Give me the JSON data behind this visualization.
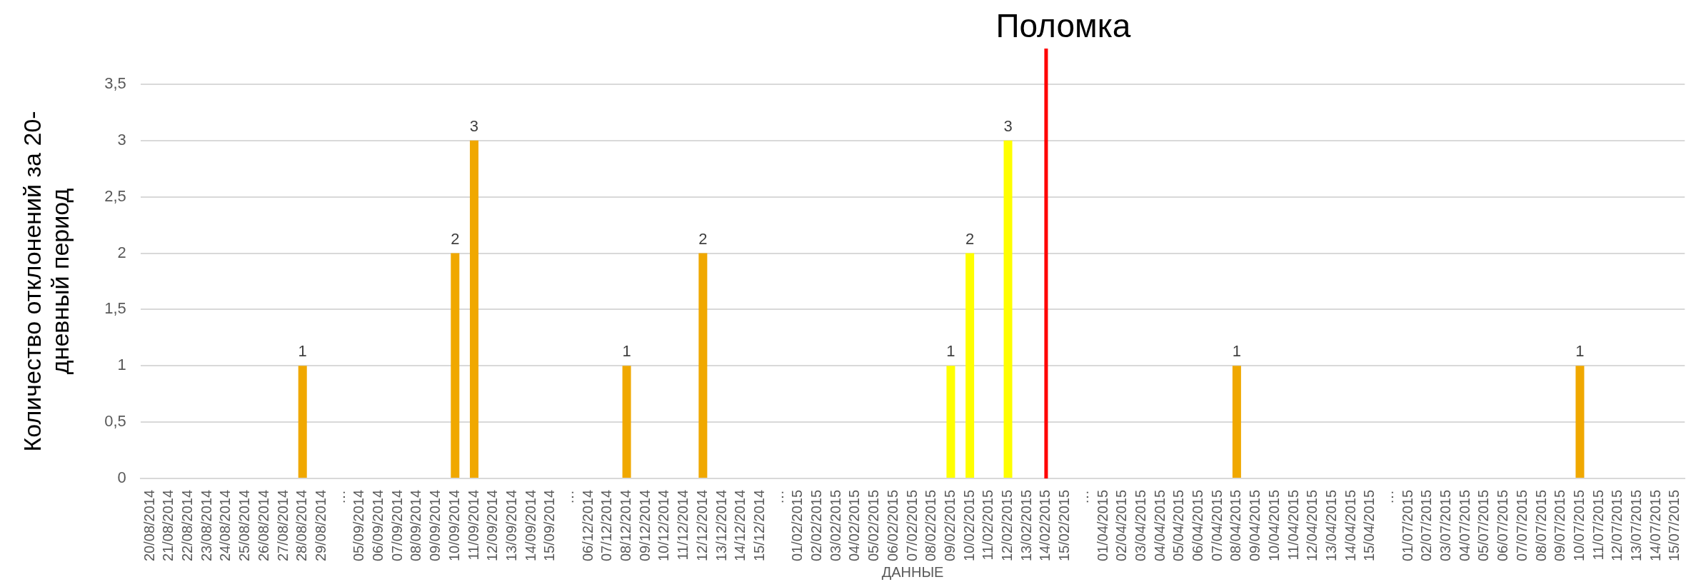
{
  "chart_data": {
    "type": "bar",
    "xlabel": "ДАННЫЕ",
    "ylabel": "Количество отклонений за 20-дневный период",
    "categories": [
      "20/08/2014",
      "21/08/2014",
      "22/08/2014",
      "23/08/2014",
      "24/08/2014",
      "25/08/2014",
      "26/08/2014",
      "27/08/2014",
      "28/08/2014",
      "29/08/2014",
      "…",
      "05/09/2014",
      "06/09/2014",
      "07/09/2014",
      "08/09/2014",
      "09/09/2014",
      "10/09/2014",
      "11/09/2014",
      "12/09/2014",
      "13/09/2014",
      "14/09/2014",
      "15/09/2014",
      "…",
      "06/12/2014",
      "07/12/2014",
      "08/12/2014",
      "09/12/2014",
      "10/12/2014",
      "11/12/2014",
      "12/12/2014",
      "13/12/2014",
      "14/12/2014",
      "15/12/2014",
      "…",
      "01/02/2015",
      "02/02/2015",
      "03/02/2015",
      "04/02/2015",
      "05/02/2015",
      "06/02/2015",
      "07/02/2015",
      "08/02/2015",
      "09/02/2015",
      "10/02/2015",
      "11/02/2015",
      "12/02/2015",
      "13/02/2015",
      "14/02/2015",
      "15/02/2015",
      "…",
      "01/04/2015",
      "02/04/2015",
      "03/04/2015",
      "04/04/2015",
      "05/04/2015",
      "06/04/2015",
      "07/04/2015",
      "08/04/2015",
      "09/04/2015",
      "10/04/2015",
      "11/04/2015",
      "12/04/2015",
      "13/04/2015",
      "14/04/2015",
      "15/04/2015",
      "…",
      "01/07/2015",
      "02/07/2015",
      "03/07/2015",
      "04/07/2015",
      "05/07/2015",
      "06/07/2015",
      "07/07/2015",
      "08/07/2015",
      "09/07/2015",
      "10/07/2015",
      "11/07/2015",
      "12/07/2015",
      "13/07/2015",
      "14/07/2015",
      "15/07/2015"
    ],
    "values": [
      0,
      0,
      0,
      0,
      0,
      0,
      0,
      0,
      1,
      0,
      0,
      0,
      0,
      0,
      0,
      0,
      2,
      3,
      0,
      0,
      0,
      0,
      0,
      0,
      0,
      1,
      0,
      0,
      0,
      2,
      0,
      0,
      0,
      0,
      0,
      0,
      0,
      0,
      0,
      0,
      0,
      0,
      1,
      2,
      0,
      3,
      0,
      0,
      0,
      0,
      0,
      0,
      0,
      0,
      0,
      0,
      0,
      1,
      0,
      0,
      0,
      0,
      0,
      0,
      0,
      0,
      0,
      0,
      0,
      0,
      0,
      0,
      0,
      0,
      0,
      1,
      0,
      0,
      0,
      0,
      0
    ],
    "value_labels": [
      null,
      null,
      null,
      null,
      null,
      null,
      null,
      null,
      "1",
      null,
      null,
      null,
      null,
      null,
      null,
      null,
      "2",
      "3",
      null,
      null,
      null,
      null,
      null,
      null,
      null,
      "1",
      null,
      null,
      null,
      "2",
      null,
      null,
      null,
      null,
      null,
      null,
      null,
      null,
      null,
      null,
      null,
      null,
      "1",
      "2",
      null,
      "3",
      null,
      null,
      null,
      null,
      null,
      null,
      null,
      null,
      null,
      null,
      null,
      "1",
      null,
      null,
      null,
      null,
      null,
      null,
      null,
      null,
      null,
      null,
      null,
      null,
      null,
      null,
      null,
      null,
      null,
      "1",
      null,
      null,
      null,
      null,
      null
    ],
    "colors": [
      "#f0a800",
      "#f0a800",
      "#f0a800",
      "#f0a800",
      "#f0a800",
      "#f0a800",
      "#f0a800",
      "#f0a800",
      "#f0a800",
      "#f0a800",
      "#f0a800",
      "#f0a800",
      "#f0a800",
      "#f0a800",
      "#f0a800",
      "#f0a800",
      "#f0a800",
      "#f0a800",
      "#f0a800",
      "#f0a800",
      "#f0a800",
      "#f0a800",
      "#f0a800",
      "#f0a800",
      "#f0a800",
      "#f0a800",
      "#f0a800",
      "#f0a800",
      "#f0a800",
      "#f0a800",
      "#f0a800",
      "#f0a800",
      "#f0a800",
      "#f0a800",
      "#f0a800",
      "#f0a800",
      "#f0a800",
      "#f0a800",
      "#f0a800",
      "#f0a800",
      "#f0a800",
      "#f0a800",
      "#ffff00",
      "#ffff00",
      "#ffff00",
      "#ffff00",
      "#f0a800",
      "#f0a800",
      "#f0a800",
      "#f0a800",
      "#f0a800",
      "#f0a800",
      "#f0a800",
      "#f0a800",
      "#f0a800",
      "#f0a800",
      "#f0a800",
      "#f0a800",
      "#f0a800",
      "#f0a800",
      "#f0a800",
      "#f0a800",
      "#f0a800",
      "#f0a800",
      "#f0a800",
      "#f0a800",
      "#f0a800",
      "#f0a800",
      "#f0a800",
      "#f0a800",
      "#f0a800",
      "#f0a800",
      "#f0a800",
      "#f0a800",
      "#f0a800",
      "#f0a800",
      "#f0a800",
      "#f0a800",
      "#f0a800",
      "#f0a800",
      "#f0a800"
    ],
    "ylim": [
      0,
      3.5
    ],
    "yticks": [
      0,
      {
        "value": 0.5,
        "label": "0,5"
      },
      1,
      {
        "value": 1.5,
        "label": "1,5"
      },
      2,
      {
        "value": 2.5,
        "label": "2,5"
      },
      3,
      {
        "value": 3.5,
        "label": "3,5"
      }
    ],
    "grid": "y",
    "legend": false,
    "ref_lines": [
      {
        "axis": "x",
        "value": "14/02/2015",
        "label": "Поломка",
        "color": "#ff0000"
      }
    ]
  }
}
